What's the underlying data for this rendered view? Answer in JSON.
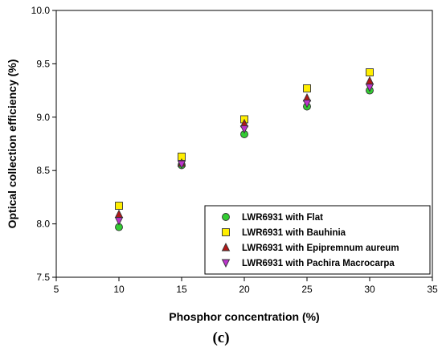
{
  "caption": "(c)",
  "chart_data": {
    "type": "scatter",
    "title": "",
    "xlabel": "Phosphor concentration (%)",
    "ylabel": "Optical collection efficiency (%)",
    "xlim": [
      5,
      35
    ],
    "ylim": [
      7.5,
      10.0
    ],
    "xticks": [
      "5",
      "10",
      "15",
      "20",
      "25",
      "30",
      "35"
    ],
    "yticks": [
      "7.5",
      "8.0",
      "8.5",
      "9.0",
      "9.5",
      "10.0"
    ],
    "grid": false,
    "legend_position": "bottom-right",
    "x": [
      10,
      15,
      20,
      25,
      30
    ],
    "series": [
      {
        "name": "LWR6931 with Flat",
        "marker": "circle",
        "color": "#33cc33",
        "values": [
          7.97,
          8.55,
          8.84,
          9.1,
          9.25
        ]
      },
      {
        "name": "LWR6931 with Bauhinia",
        "marker": "square",
        "color": "#ffee00",
        "values": [
          8.17,
          8.63,
          8.98,
          9.27,
          9.42
        ]
      },
      {
        "name": "LWR6931 with Epipremnum aureum",
        "marker": "triangle-up",
        "color": "#b01818",
        "values": [
          8.09,
          8.57,
          8.94,
          9.18,
          9.34
        ]
      },
      {
        "name": "LWR6931 with Pachira Macrocarpa",
        "marker": "triangle-down",
        "color": "#bb33cc",
        "values": [
          8.03,
          8.56,
          8.89,
          9.13,
          9.28
        ]
      }
    ]
  }
}
